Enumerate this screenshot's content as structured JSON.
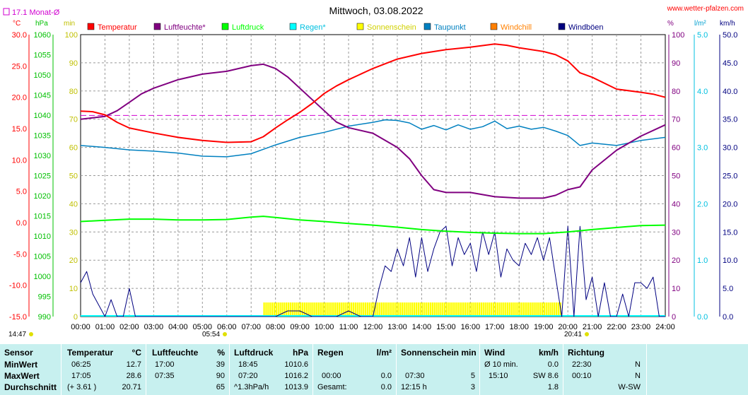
{
  "title": "Mittwoch, 03.08.2022",
  "website": "www.wetter-pfalzen.com",
  "monthly_avg": "17.1 Monat-Ø",
  "unit_labels": {
    "temp": "°C",
    "press": "hPa",
    "min": "min",
    "pct": "%",
    "rain": "l/m²",
    "wind": "km/h"
  },
  "colors": {
    "temperature": "#ff0000",
    "humidity": "#800080",
    "pressure": "#00ff00",
    "rain": "#00ffff",
    "sunshine": "#ffff00",
    "dewpoint": "#0080c0",
    "windchill": "#ff8000",
    "gusts": "#000080",
    "monthly": "#d000d0",
    "bg_table": "#c7f0ef"
  },
  "legend": [
    {
      "label": "Temperatur",
      "color": "#ff0000"
    },
    {
      "label": "Luftfeuchte*",
      "color": "#800080"
    },
    {
      "label": "Luftdruck",
      "color": "#00ff00"
    },
    {
      "label": "Regen*",
      "color": "#00ffff"
    },
    {
      "label": "Sonnenschein",
      "color": "#ffff00"
    },
    {
      "label": "Taupunkt",
      "color": "#0080c0"
    },
    {
      "label": "Windchill",
      "color": "#ff8000"
    },
    {
      "label": "Windböen",
      "color": "#000080"
    }
  ],
  "sunrise": "05:54",
  "sunset": "20:41",
  "daylength": "14:47",
  "chart_data": {
    "type": "line",
    "title": "Mittwoch, 03.08.2022",
    "x_ticks": [
      "00:00",
      "01:00",
      "02:00",
      "03:00",
      "04:00",
      "05:00",
      "06:00",
      "07:00",
      "08:00",
      "09:00",
      "10:00",
      "11:00",
      "12:00",
      "13:00",
      "14:00",
      "15:00",
      "16:00",
      "17:00",
      "18:00",
      "19:00",
      "20:00",
      "21:00",
      "22:00",
      "23:00",
      "24:00"
    ],
    "axes": {
      "temp_c": {
        "ticks": [
          "30.0",
          "25.0",
          "20.0",
          "15.0",
          "10.0",
          "5.0",
          "0.0",
          "-5.0",
          "-10.0",
          "-15.0"
        ],
        "range": [
          -15,
          30
        ]
      },
      "pressure_hpa": {
        "ticks": [
          "1060",
          "1055",
          "1050",
          "1045",
          "1040",
          "1035",
          "1030",
          "1025",
          "1020",
          "1015",
          "1010",
          "1005",
          "1000",
          "995",
          "990"
        ],
        "range": [
          990,
          1060
        ]
      },
      "sunshine_min": {
        "ticks": [
          "100",
          "90",
          "80",
          "70",
          "60",
          "50",
          "40",
          "30",
          "20",
          "10",
          "0"
        ],
        "range": [
          0,
          100
        ]
      },
      "humidity_pct": {
        "ticks": [
          "100",
          "90",
          "80",
          "70",
          "60",
          "50",
          "40",
          "30",
          "20",
          "10",
          "0"
        ],
        "range": [
          0,
          100
        ]
      },
      "rain_lm2": {
        "ticks": [
          "5.0",
          "4.0",
          "3.0",
          "2.0",
          "1.0",
          "0.0"
        ],
        "range": [
          0,
          5
        ]
      },
      "wind_kmh": {
        "ticks": [
          "50.0",
          "45.0",
          "40.0",
          "35.0",
          "30.0",
          "25.0",
          "20.0",
          "15.0",
          "10.0",
          "5.0",
          "0.0"
        ],
        "range": [
          0,
          50
        ]
      }
    },
    "monthly_avg_temp": 17.1,
    "series": [
      {
        "name": "Temperatur",
        "axis": "temp_c",
        "x": [
          0,
          0.5,
          1,
          1.5,
          2,
          3,
          4,
          5,
          6,
          7,
          7.5,
          8,
          8.5,
          9,
          9.5,
          10,
          10.5,
          11,
          12,
          13,
          14,
          15,
          16,
          17,
          17.5,
          18,
          19,
          19.5,
          20,
          20.5,
          21,
          22,
          23,
          23.5,
          24
        ],
        "values": [
          17.8,
          17.7,
          17.2,
          16.0,
          15.1,
          14.3,
          13.6,
          13.1,
          12.8,
          12.9,
          13.7,
          15.1,
          16.4,
          17.6,
          19.0,
          20.6,
          21.8,
          22.8,
          24.6,
          26.1,
          27.0,
          27.6,
          28.0,
          28.5,
          28.3,
          27.9,
          27.3,
          26.8,
          25.8,
          23.9,
          23.2,
          21.3,
          20.8,
          20.5,
          20.0
        ]
      },
      {
        "name": "Luftfeuchte*",
        "axis": "humidity_pct",
        "x": [
          0,
          1,
          1.5,
          2,
          2.5,
          3,
          4,
          5,
          6,
          7,
          7.5,
          8,
          8.5,
          9,
          9.5,
          10,
          10.5,
          11,
          12,
          13,
          13.5,
          14,
          14.5,
          15,
          16,
          17,
          18,
          19,
          19.5,
          20,
          20.5,
          21,
          22,
          23,
          24
        ],
        "values": [
          70,
          71,
          73,
          76,
          79,
          81,
          84,
          86,
          87,
          89,
          89.5,
          88,
          85,
          81,
          77,
          73,
          69,
          67,
          65,
          60,
          56,
          50,
          45,
          44,
          44,
          42.5,
          42,
          42,
          43,
          45,
          46,
          52,
          59,
          64,
          68
        ]
      },
      {
        "name": "Luftdruck",
        "axis": "pressure_hpa",
        "x": [
          0,
          1,
          2,
          3,
          4,
          5,
          6,
          7,
          7.5,
          8,
          9,
          10,
          11,
          12,
          13,
          14,
          15,
          16,
          17,
          18,
          19,
          20,
          21,
          22,
          23,
          24
        ],
        "values": [
          1013.6,
          1013.9,
          1014.2,
          1014.2,
          1014.0,
          1014.0,
          1014.1,
          1014.7,
          1014.9,
          1014.6,
          1014.0,
          1013.6,
          1013.1,
          1012.7,
          1012.2,
          1011.6,
          1011.2,
          1010.9,
          1010.7,
          1010.6,
          1010.6,
          1011.0,
          1011.6,
          1012.1,
          1012.6,
          1012.7
        ]
      },
      {
        "name": "Taupunkt",
        "axis": "temp_c",
        "x": [
          0,
          1,
          2,
          3,
          4,
          5,
          6,
          7,
          8,
          9,
          10,
          11,
          12,
          12.5,
          13,
          13.5,
          14,
          14.5,
          15,
          15.5,
          16,
          16.5,
          17,
          17.5,
          18,
          18.5,
          19,
          19.5,
          20,
          20.5,
          21,
          22,
          23,
          24
        ],
        "values": [
          12.3,
          12.0,
          11.6,
          11.4,
          11.1,
          10.6,
          10.5,
          11.0,
          12.4,
          13.6,
          14.4,
          15.4,
          16.0,
          16.4,
          16.3,
          15.9,
          14.9,
          15.5,
          14.8,
          15.6,
          14.9,
          15.3,
          16.2,
          15.0,
          15.4,
          14.9,
          15.2,
          14.6,
          13.9,
          12.3,
          12.7,
          12.3,
          13.1,
          13.6
        ]
      },
      {
        "name": "Windböen",
        "axis": "wind_kmh",
        "x": [
          0,
          0.25,
          0.5,
          0.75,
          1,
          1.25,
          1.5,
          1.75,
          2,
          2.25,
          2.5,
          3,
          4,
          5,
          6,
          7,
          8,
          8.5,
          9,
          9.5,
          10,
          10.5,
          11,
          11.5,
          12,
          12.25,
          12.5,
          12.75,
          13,
          13.25,
          13.5,
          13.75,
          14,
          14.25,
          14.5,
          14.75,
          15,
          15.25,
          15.5,
          15.75,
          16,
          16.25,
          16.5,
          16.75,
          17,
          17.25,
          17.5,
          17.75,
          18,
          18.25,
          18.5,
          18.75,
          19,
          19.25,
          19.5,
          19.75,
          20,
          20.25,
          20.5,
          20.75,
          21,
          21.25,
          21.5,
          21.75,
          22,
          22.25,
          22.5,
          22.75,
          23,
          23.25,
          23.5,
          23.75,
          24
        ],
        "values": [
          6,
          8,
          4,
          2,
          0,
          3,
          0,
          0,
          5,
          0,
          0,
          0,
          0,
          0,
          0,
          0,
          0,
          1,
          1,
          0,
          0,
          0,
          1,
          0,
          0,
          5,
          9,
          8,
          12,
          9,
          14,
          7,
          14,
          8,
          12,
          15,
          16,
          9,
          14,
          11,
          13,
          8,
          15,
          11,
          15,
          7,
          12,
          10,
          9,
          13,
          11,
          14,
          10,
          14,
          7,
          0,
          16,
          0,
          16,
          3,
          7,
          0,
          6,
          0,
          0,
          4,
          0,
          6,
          6,
          5,
          7,
          0,
          0
        ]
      }
    ],
    "sunshine_minutes_band": {
      "start": "07:30",
      "end": "19:45",
      "level": 5
    },
    "grid": true
  },
  "table": {
    "headers": {
      "sensor": "Sensor",
      "temperature": "Temperatur",
      "temp_unit": "°C",
      "humidity": "Luftfeuchte",
      "hum_unit": "%",
      "pressure": "Luftdruck",
      "press_unit": "hPa",
      "rain": "Regen",
      "rain_unit": "l/m²",
      "sun": "Sonnenschein min",
      "wind": "Wind",
      "wind_unit": "km/h",
      "direction": "Richtung"
    },
    "rows": [
      {
        "label": "MinWert",
        "t_time": "06:25",
        "t_val": "12.7",
        "h_time": "17:00",
        "h_val": "39",
        "p_time": "18:45",
        "p_val": "1010.6",
        "r_time": "",
        "r_val": "",
        "s_time": "",
        "s_val": "",
        "w_time": "Ø 10 min.",
        "w_val": "0.0",
        "d_time": "22:30",
        "d_val": "N"
      },
      {
        "label": "MaxWert",
        "t_time": "17:05",
        "t_val": "28.6",
        "h_time": "07:35",
        "h_val": "90",
        "p_time": "07:20",
        "p_val": "1016.2",
        "r_time": "00:00",
        "r_val": "0.0",
        "s_time": "07:30",
        "s_val": "5",
        "w_time": "15:10",
        "w_val": "SW 8.6",
        "d_time": "00:10",
        "d_val": "N"
      },
      {
        "label": "Durchschnitt",
        "t_time": "(+ 3.61 )",
        "t_val": "20.71",
        "h_time": "",
        "h_val": "65",
        "p_time": "^1.3hPa/h",
        "p_val": "1013.9",
        "r_time": "Gesamt:",
        "r_val": "0.0",
        "s_time": "12:15 h",
        "s_val": "3",
        "w_time": "",
        "w_val": "1.8",
        "d_time": "",
        "d_val": "W-SW"
      }
    ]
  }
}
